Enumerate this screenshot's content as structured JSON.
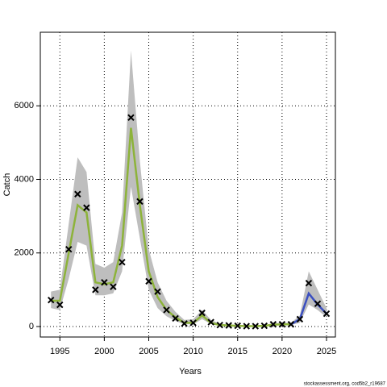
{
  "chart_data": {
    "type": "line",
    "x_label": "Years",
    "y_label": "Catch",
    "footer": "stockassessment.org, cod5b2_r19687",
    "x": [
      1994,
      1995,
      1996,
      1997,
      1998,
      1999,
      2000,
      2001,
      2002,
      2003,
      2004,
      2005,
      2006,
      2007,
      2008,
      2009,
      2010,
      2011,
      2012,
      2013,
      2014,
      2015,
      2016,
      2017,
      2018,
      2019,
      2020,
      2021,
      2022,
      2023,
      2024,
      2025
    ],
    "observed": [
      720,
      590,
      2100,
      3600,
      3230,
      1000,
      1200,
      1080,
      1750,
      5680,
      3400,
      1230,
      950,
      450,
      220,
      80,
      100,
      370,
      120,
      40,
      30,
      20,
      10,
      10,
      20,
      60,
      60,
      60,
      200,
      1180,
      620,
      350
    ],
    "fit": [
      700,
      700,
      2000,
      3300,
      3100,
      1200,
      1150,
      1200,
      2200,
      5400,
      3300,
      1500,
      800,
      450,
      250,
      100,
      100,
      300,
      100,
      40,
      30,
      20,
      10,
      10,
      20,
      50,
      60,
      60,
      null,
      null,
      null,
      null
    ],
    "forecast": [
      null,
      null,
      null,
      null,
      null,
      null,
      null,
      null,
      null,
      null,
      null,
      null,
      null,
      null,
      null,
      null,
      null,
      null,
      null,
      null,
      null,
      null,
      null,
      null,
      null,
      null,
      null,
      60,
      200,
      900,
      600,
      350
    ],
    "upper": [
      950,
      1000,
      2800,
      4600,
      4200,
      1700,
      1600,
      1750,
      3100,
      7500,
      4500,
      2100,
      1200,
      700,
      400,
      180,
      200,
      450,
      180,
      70,
      50,
      40,
      20,
      20,
      40,
      90,
      100,
      100,
      300,
      1500,
      1000,
      500
    ],
    "lower": [
      500,
      450,
      1300,
      2300,
      2200,
      850,
      850,
      900,
      1500,
      3800,
      2400,
      1000,
      500,
      280,
      150,
      60,
      60,
      200,
      70,
      20,
      15,
      10,
      5,
      5,
      10,
      30,
      40,
      40,
      100,
      600,
      450,
      250
    ],
    "fit_color": "#8db33a",
    "forecast_color": "#3b4fc0",
    "band_color": "#bebebe",
    "xlim": [
      1992.8,
      2026.0
    ],
    "ylim": [
      -285,
      8000
    ],
    "xticks": [
      1995,
      2000,
      2005,
      2010,
      2015,
      2020,
      2025
    ],
    "yticks": [
      0,
      2000,
      4000,
      6000
    ],
    "grid": true
  }
}
